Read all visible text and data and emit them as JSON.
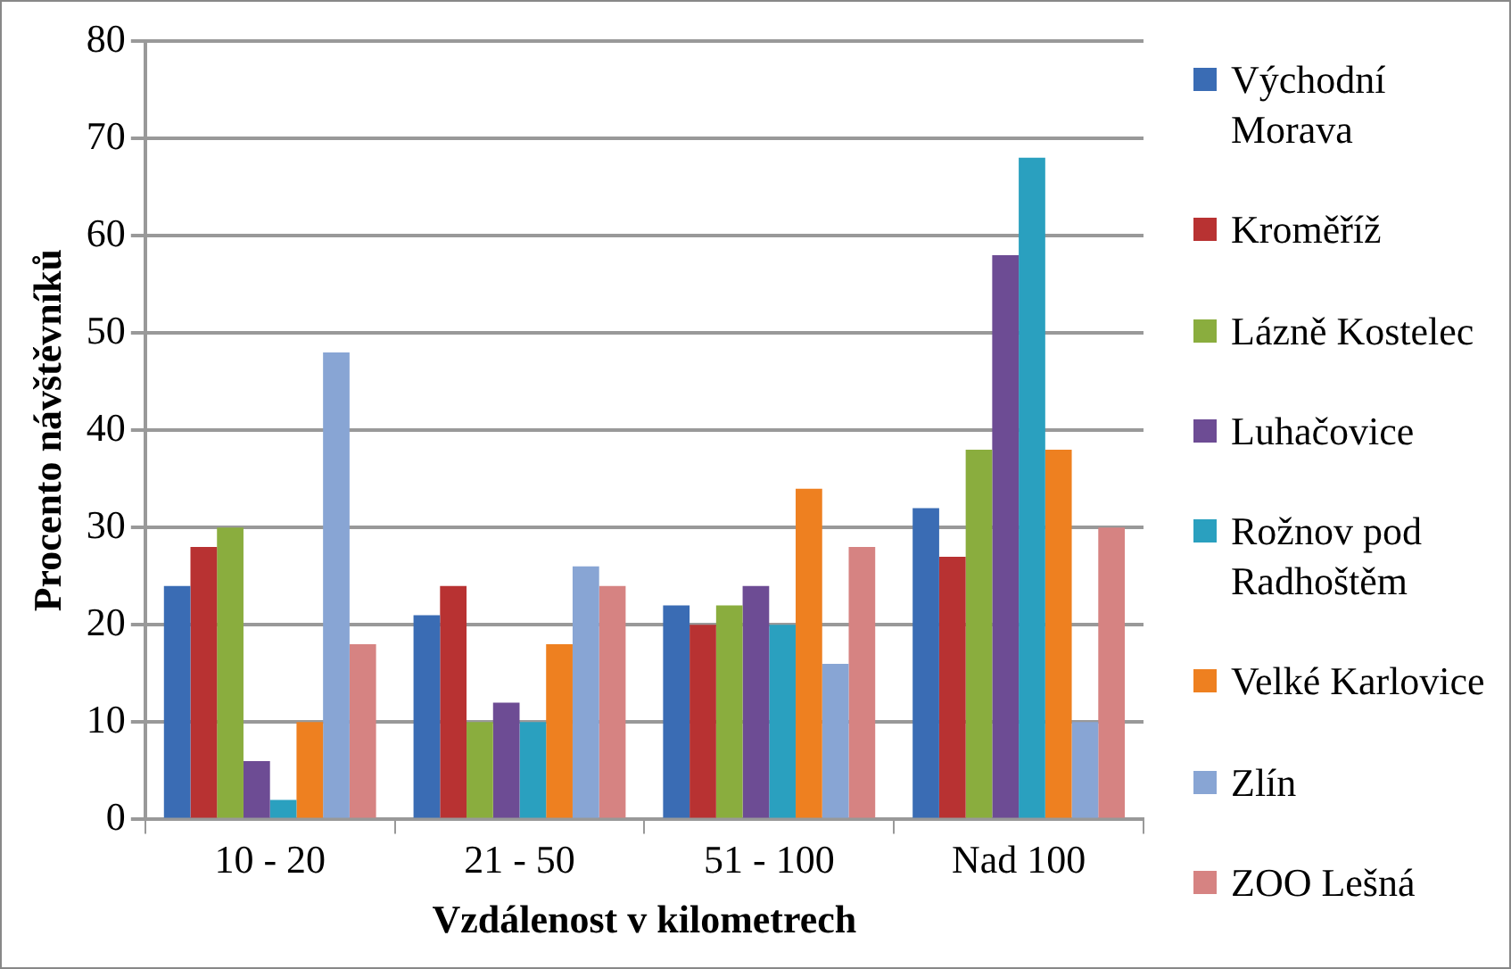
{
  "chart_data": {
    "type": "bar",
    "xlabel": "Vzdálenost v kilometrech",
    "ylabel": "Procento návštěvníků",
    "categories": [
      "10 - 20",
      "21 - 50",
      "51 - 100",
      "Nad 100"
    ],
    "series": [
      {
        "name": "Východní Morava",
        "color": "#3a6cb4",
        "values": [
          24,
          21,
          22,
          32
        ]
      },
      {
        "name": "Kroměříž",
        "color": "#b83232",
        "values": [
          28,
          24,
          20,
          27
        ]
      },
      {
        "name": "Lázně Kostelec",
        "color": "#8aad3e",
        "values": [
          30,
          10,
          22,
          38
        ]
      },
      {
        "name": "Luhačovice",
        "color": "#6d4c94",
        "values": [
          6,
          12,
          24,
          58
        ]
      },
      {
        "name": "Rožnov pod Radhoštěm",
        "color": "#2aa0bf",
        "values": [
          2,
          10,
          20,
          68
        ]
      },
      {
        "name": "Velké Karlovice",
        "color": "#ee8020",
        "values": [
          10,
          18,
          34,
          38
        ]
      },
      {
        "name": "Zlín",
        "color": "#88a5d4",
        "values": [
          48,
          26,
          16,
          10
        ]
      },
      {
        "name": "ZOO Lešná",
        "color": "#d68382",
        "values": [
          18,
          24,
          28,
          30
        ]
      }
    ],
    "ylim": [
      0,
      80
    ],
    "yticks": [
      0,
      10,
      20,
      30,
      40,
      50,
      60,
      70,
      80
    ],
    "grid": "y",
    "legend": "right"
  }
}
